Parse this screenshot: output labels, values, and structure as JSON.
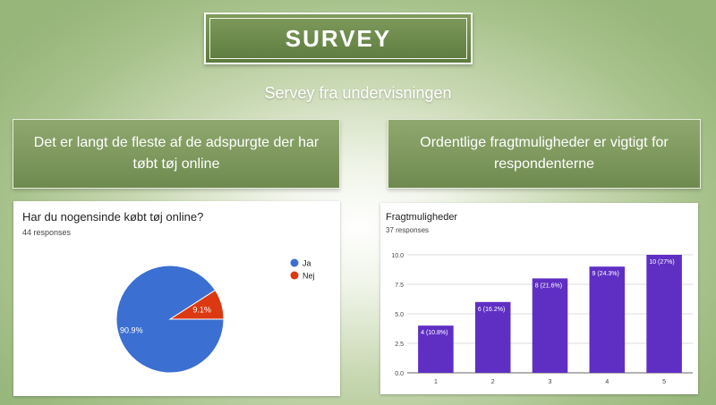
{
  "header": {
    "title": "SURVEY"
  },
  "subtitle": "Servey fra undervisningen",
  "banners": {
    "left": "Det er langt de fleste af de adspurgte der har tøbt tøj online",
    "right": "Ordentlige fragtmuligheder er vigtigt for respondenterne"
  },
  "colors": {
    "ja": "#3b6fd1",
    "nej": "#dc3912",
    "bar": "#5f2fc4"
  },
  "chart_data": [
    {
      "type": "pie",
      "title": "Har du nogensinde købt tøj online?",
      "responses": "44 responses",
      "slices": [
        {
          "name": "Ja",
          "value": 90.9,
          "label": "90.9%"
        },
        {
          "name": "Nej",
          "value": 9.1,
          "label": "9.1%"
        }
      ],
      "legend": "right"
    },
    {
      "type": "bar",
      "title": "Fragtmuligheder",
      "responses": "37 responses",
      "categories": [
        "1",
        "2",
        "3",
        "4",
        "5"
      ],
      "values": [
        4,
        6,
        8,
        9,
        10
      ],
      "data_labels": [
        "4 (10.8%)",
        "6 (16.2%)",
        "8 (21.6%)",
        "9 (24.3%)",
        "10 (27%)"
      ],
      "yticks": [
        "0.0",
        "2.5",
        "5.0",
        "7.5",
        "10.0"
      ],
      "ylim": [
        0,
        10
      ],
      "grid": true
    }
  ]
}
